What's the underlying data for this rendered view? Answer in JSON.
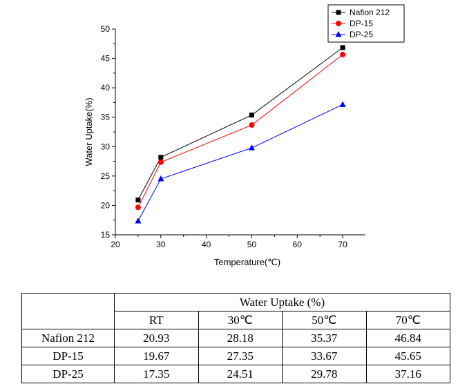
{
  "chart_data": {
    "type": "line",
    "xlabel": "Temperature(℃)",
    "ylabel": "Water Uptake(%)",
    "xlim": [
      20,
      75
    ],
    "ylim": [
      15,
      50
    ],
    "xticks": [
      20,
      30,
      40,
      50,
      60,
      70
    ],
    "yticks": [
      15,
      20,
      25,
      30,
      35,
      40,
      45,
      50
    ],
    "x": [
      25,
      30,
      50,
      70
    ],
    "grid": false,
    "legend_position": "top-right",
    "series": [
      {
        "name": "Nafion 212",
        "color": "#000000",
        "marker": "square",
        "values": [
          20.93,
          28.18,
          35.37,
          46.84
        ]
      },
      {
        "name": "DP-15",
        "color": "#ff0000",
        "marker": "circle",
        "values": [
          19.67,
          27.35,
          33.67,
          45.65
        ]
      },
      {
        "name": "DP-25",
        "color": "#0000ff",
        "marker": "triangle",
        "values": [
          17.35,
          24.51,
          29.78,
          37.16
        ]
      }
    ]
  },
  "table": {
    "title": "Water Uptake (%)",
    "columns": [
      "RT",
      "30℃",
      "50℃",
      "70℃"
    ],
    "rows": [
      {
        "label": "Nafion 212",
        "values": [
          "20.93",
          "28.18",
          "35.37",
          "46.84"
        ]
      },
      {
        "label": "DP-15",
        "values": [
          "19.67",
          "27.35",
          "33.67",
          "45.65"
        ]
      },
      {
        "label": "DP-25",
        "values": [
          "17.35",
          "24.51",
          "29.78",
          "37.16"
        ]
      }
    ]
  }
}
